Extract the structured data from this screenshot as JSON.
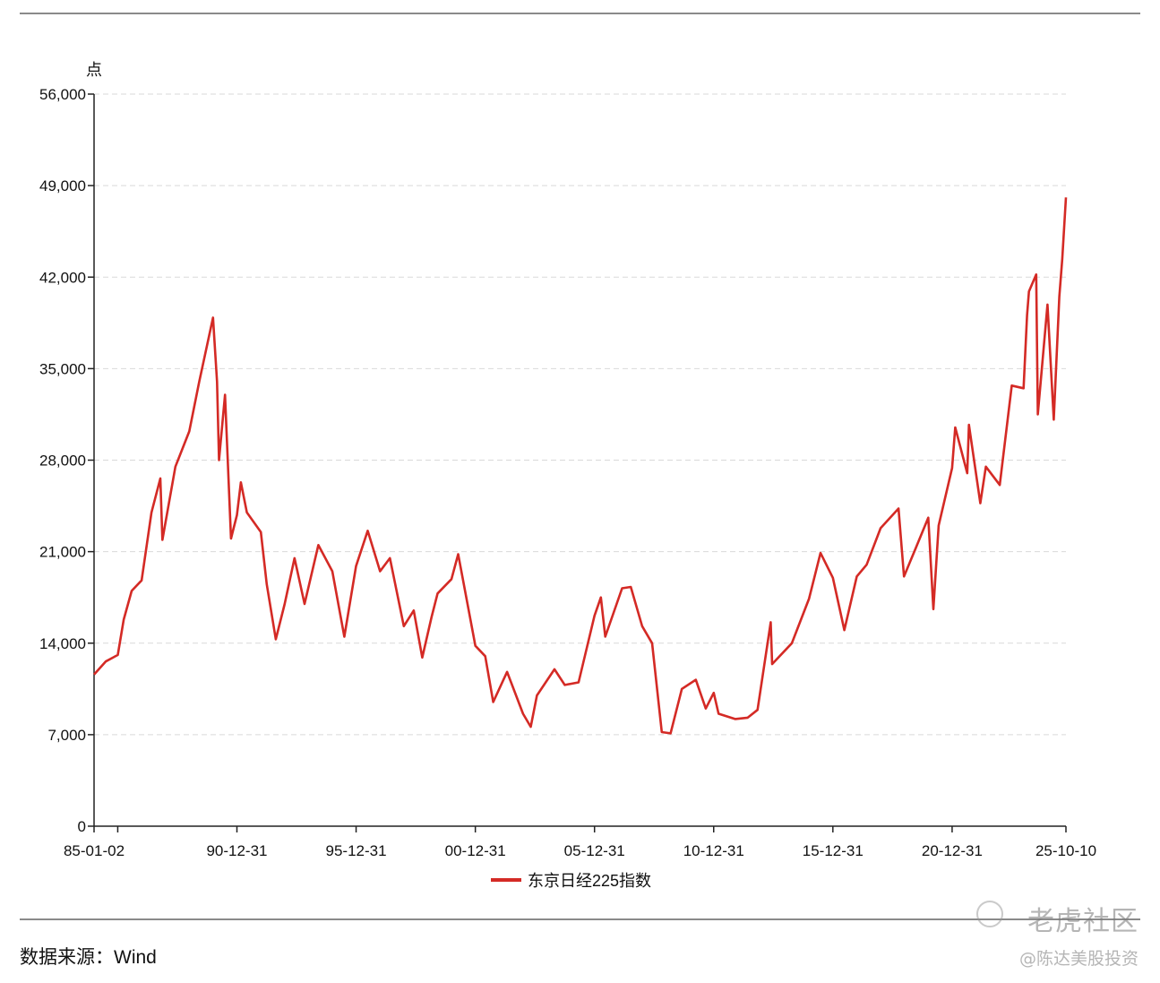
{
  "chart_data": {
    "type": "line",
    "title": "",
    "ylabel": "点",
    "xlabel": "",
    "ylim": [
      0,
      56000
    ],
    "yticks": [
      "0",
      "7,000",
      "14,000",
      "21,000",
      "28,000",
      "35,000",
      "42,000",
      "49,000",
      "56,000"
    ],
    "x_range": [
      "1985-01-02",
      "2025-10-10"
    ],
    "xticks": [
      "85-01-02",
      "90-12-31",
      "95-12-31",
      "00-12-31",
      "05-12-31",
      "10-12-31",
      "15-12-31",
      "20-12-31",
      "25-10-10"
    ],
    "grid": "horizontal dashed",
    "legend_position": "bottom-center",
    "series": [
      {
        "name": "东京日经225指数",
        "color": "#d42a25",
        "x": [
          "1985-01-02",
          "1985-06-30",
          "1986-01-01",
          "1986-04-01",
          "1986-08-01",
          "1987-01-01",
          "1987-06-01",
          "1987-10-15",
          "1987-11-15",
          "1988-06-01",
          "1988-12-31",
          "1989-06-01",
          "1989-12-29",
          "1990-03-01",
          "1990-04-01",
          "1990-07-01",
          "1990-10-01",
          "1990-12-31",
          "1991-03-01",
          "1991-06-01",
          "1992-01-01",
          "1992-04-01",
          "1992-08-18",
          "1993-01-01",
          "1993-06-01",
          "1993-11-01",
          "1994-06-01",
          "1995-01-01",
          "1995-07-03",
          "1995-12-31",
          "1996-06-26",
          "1997-01-01",
          "1997-06-01",
          "1997-12-31",
          "1998-06-01",
          "1998-10-09",
          "1999-03-01",
          "1999-06-01",
          "1999-12-31",
          "2000-04-12",
          "2000-12-31",
          "2001-06-01",
          "2001-09-30",
          "2002-05-01",
          "2002-12-31",
          "2003-04-28",
          "2003-08-01",
          "2004-04-26",
          "2004-10-01",
          "2005-05-01",
          "2005-12-31",
          "2006-04-07",
          "2006-06-14",
          "2007-02-26",
          "2007-07-09",
          "2007-12-31",
          "2008-06-01",
          "2008-10-27",
          "2009-03-10",
          "2009-08-30",
          "2010-04-01",
          "2010-08-31",
          "2010-12-31",
          "2011-03-15",
          "2011-11-25",
          "2012-06-04",
          "2012-11-01",
          "2013-05-22",
          "2013-06-13",
          "2014-04-11",
          "2014-12-31",
          "2015-06-24",
          "2015-12-31",
          "2016-06-24",
          "2016-12-31",
          "2017-06-01",
          "2017-12-31",
          "2018-10-02",
          "2018-12-25",
          "2019-06-01",
          "2019-12-31",
          "2020-03-19",
          "2020-06-08",
          "2020-12-31",
          "2021-02-16",
          "2021-08-20",
          "2021-09-14",
          "2022-03-08",
          "2022-06-01",
          "2022-12-31",
          "2023-07-03",
          "2023-12-31",
          "2024-02-22",
          "2024-03-22",
          "2024-07-11",
          "2024-08-05",
          "2024-12-31",
          "2025-04-07",
          "2025-06-30",
          "2025-08-15",
          "2025-10-10"
        ],
        "values": [
          11600,
          12600,
          13100,
          15800,
          18000,
          18800,
          24000,
          26600,
          21900,
          27500,
          30200,
          34000,
          38900,
          34000,
          28000,
          33000,
          22000,
          23800,
          26300,
          24000,
          22500,
          18500,
          14300,
          17000,
          20500,
          17000,
          21500,
          19500,
          14500,
          19900,
          22600,
          19500,
          20500,
          15300,
          16500,
          12900,
          16000,
          17800,
          18900,
          20800,
          13800,
          13000,
          9500,
          11800,
          8600,
          7600,
          10000,
          12000,
          10800,
          11000,
          16100,
          17500,
          14500,
          18200,
          18300,
          15300,
          14000,
          7200,
          7100,
          10500,
          11200,
          9000,
          10200,
          8600,
          8200,
          8300,
          8900,
          15600,
          12400,
          14000,
          17400,
          20900,
          19000,
          15000,
          19100,
          20000,
          22800,
          24300,
          19100,
          21000,
          23600,
          16600,
          23000,
          27400,
          30500,
          27000,
          30700,
          24700,
          27500,
          26100,
          33700,
          33500,
          39100,
          40900,
          42200,
          31500,
          39900,
          31100,
          40500,
          43400,
          48100
        ]
      }
    ]
  },
  "source_text": "数据来源：Wind",
  "watermark": {
    "brand": "老虎社区",
    "user": "@陈达美股投资"
  }
}
